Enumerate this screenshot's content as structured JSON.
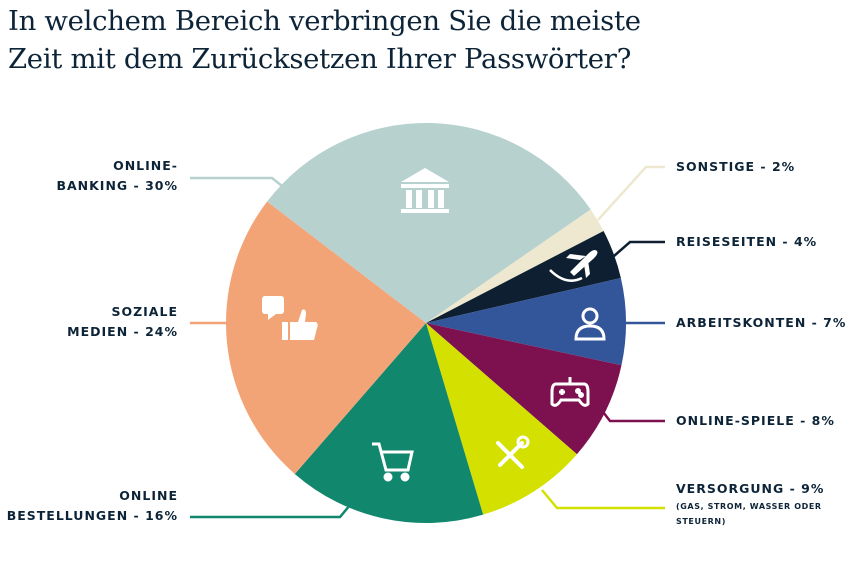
{
  "chart_data": {
    "type": "pie",
    "title": "In welchem Bereich verbringen Sie die meiste Zeit mit dem Zurücksetzen Ihrer Passwörter?",
    "title_lines": [
      "In welchem Bereich verbringen Sie die meiste",
      "Zeit mit dem Zurücksetzen Ihrer Passwörter?"
    ],
    "slices": [
      {
        "key": "sonstige",
        "label_lines": [
          "SONSTIGE - 2%"
        ],
        "value": 2,
        "color": "#ede8cf",
        "icon": ""
      },
      {
        "key": "reise",
        "label_lines": [
          "REISESEITEN - 4%"
        ],
        "value": 4,
        "color": "#0d1f30",
        "icon": "airplane-icon"
      },
      {
        "key": "arbeit",
        "label_lines": [
          "ARBEITSKONTEN - 7%"
        ],
        "value": 7,
        "color": "#33569a",
        "icon": "user-icon"
      },
      {
        "key": "spiele",
        "label_lines": [
          "ONLINE-SPIELE - 8%"
        ],
        "value": 8,
        "color": "#7d1150",
        "icon": "gamepad-icon"
      },
      {
        "key": "versorgung",
        "label_lines": [
          "VERSORGUNG - 9%"
        ],
        "sublabel": [
          "(GAS, STROM, WASSER ODER",
          "STEUERN)"
        ],
        "value": 9,
        "color": "#d4e000",
        "icon": "tools-icon"
      },
      {
        "key": "bestellungen",
        "label_lines": [
          "ONLINE",
          "BESTELLUNGEN - 16%"
        ],
        "value": 16,
        "color": "#11876d",
        "icon": "shopping-cart-icon"
      },
      {
        "key": "soziale",
        "label_lines": [
          "SOZIALE",
          "MEDIEN - 24%"
        ],
        "value": 24,
        "color": "#f3a477",
        "icon": "thumbs-up-heart-icon"
      },
      {
        "key": "banking",
        "label_lines": [
          "ONLINE-",
          "BANKING - 30%"
        ],
        "value": 30,
        "color": "#b7d1cf",
        "icon": "bank-icon"
      }
    ],
    "legend": "none"
  }
}
